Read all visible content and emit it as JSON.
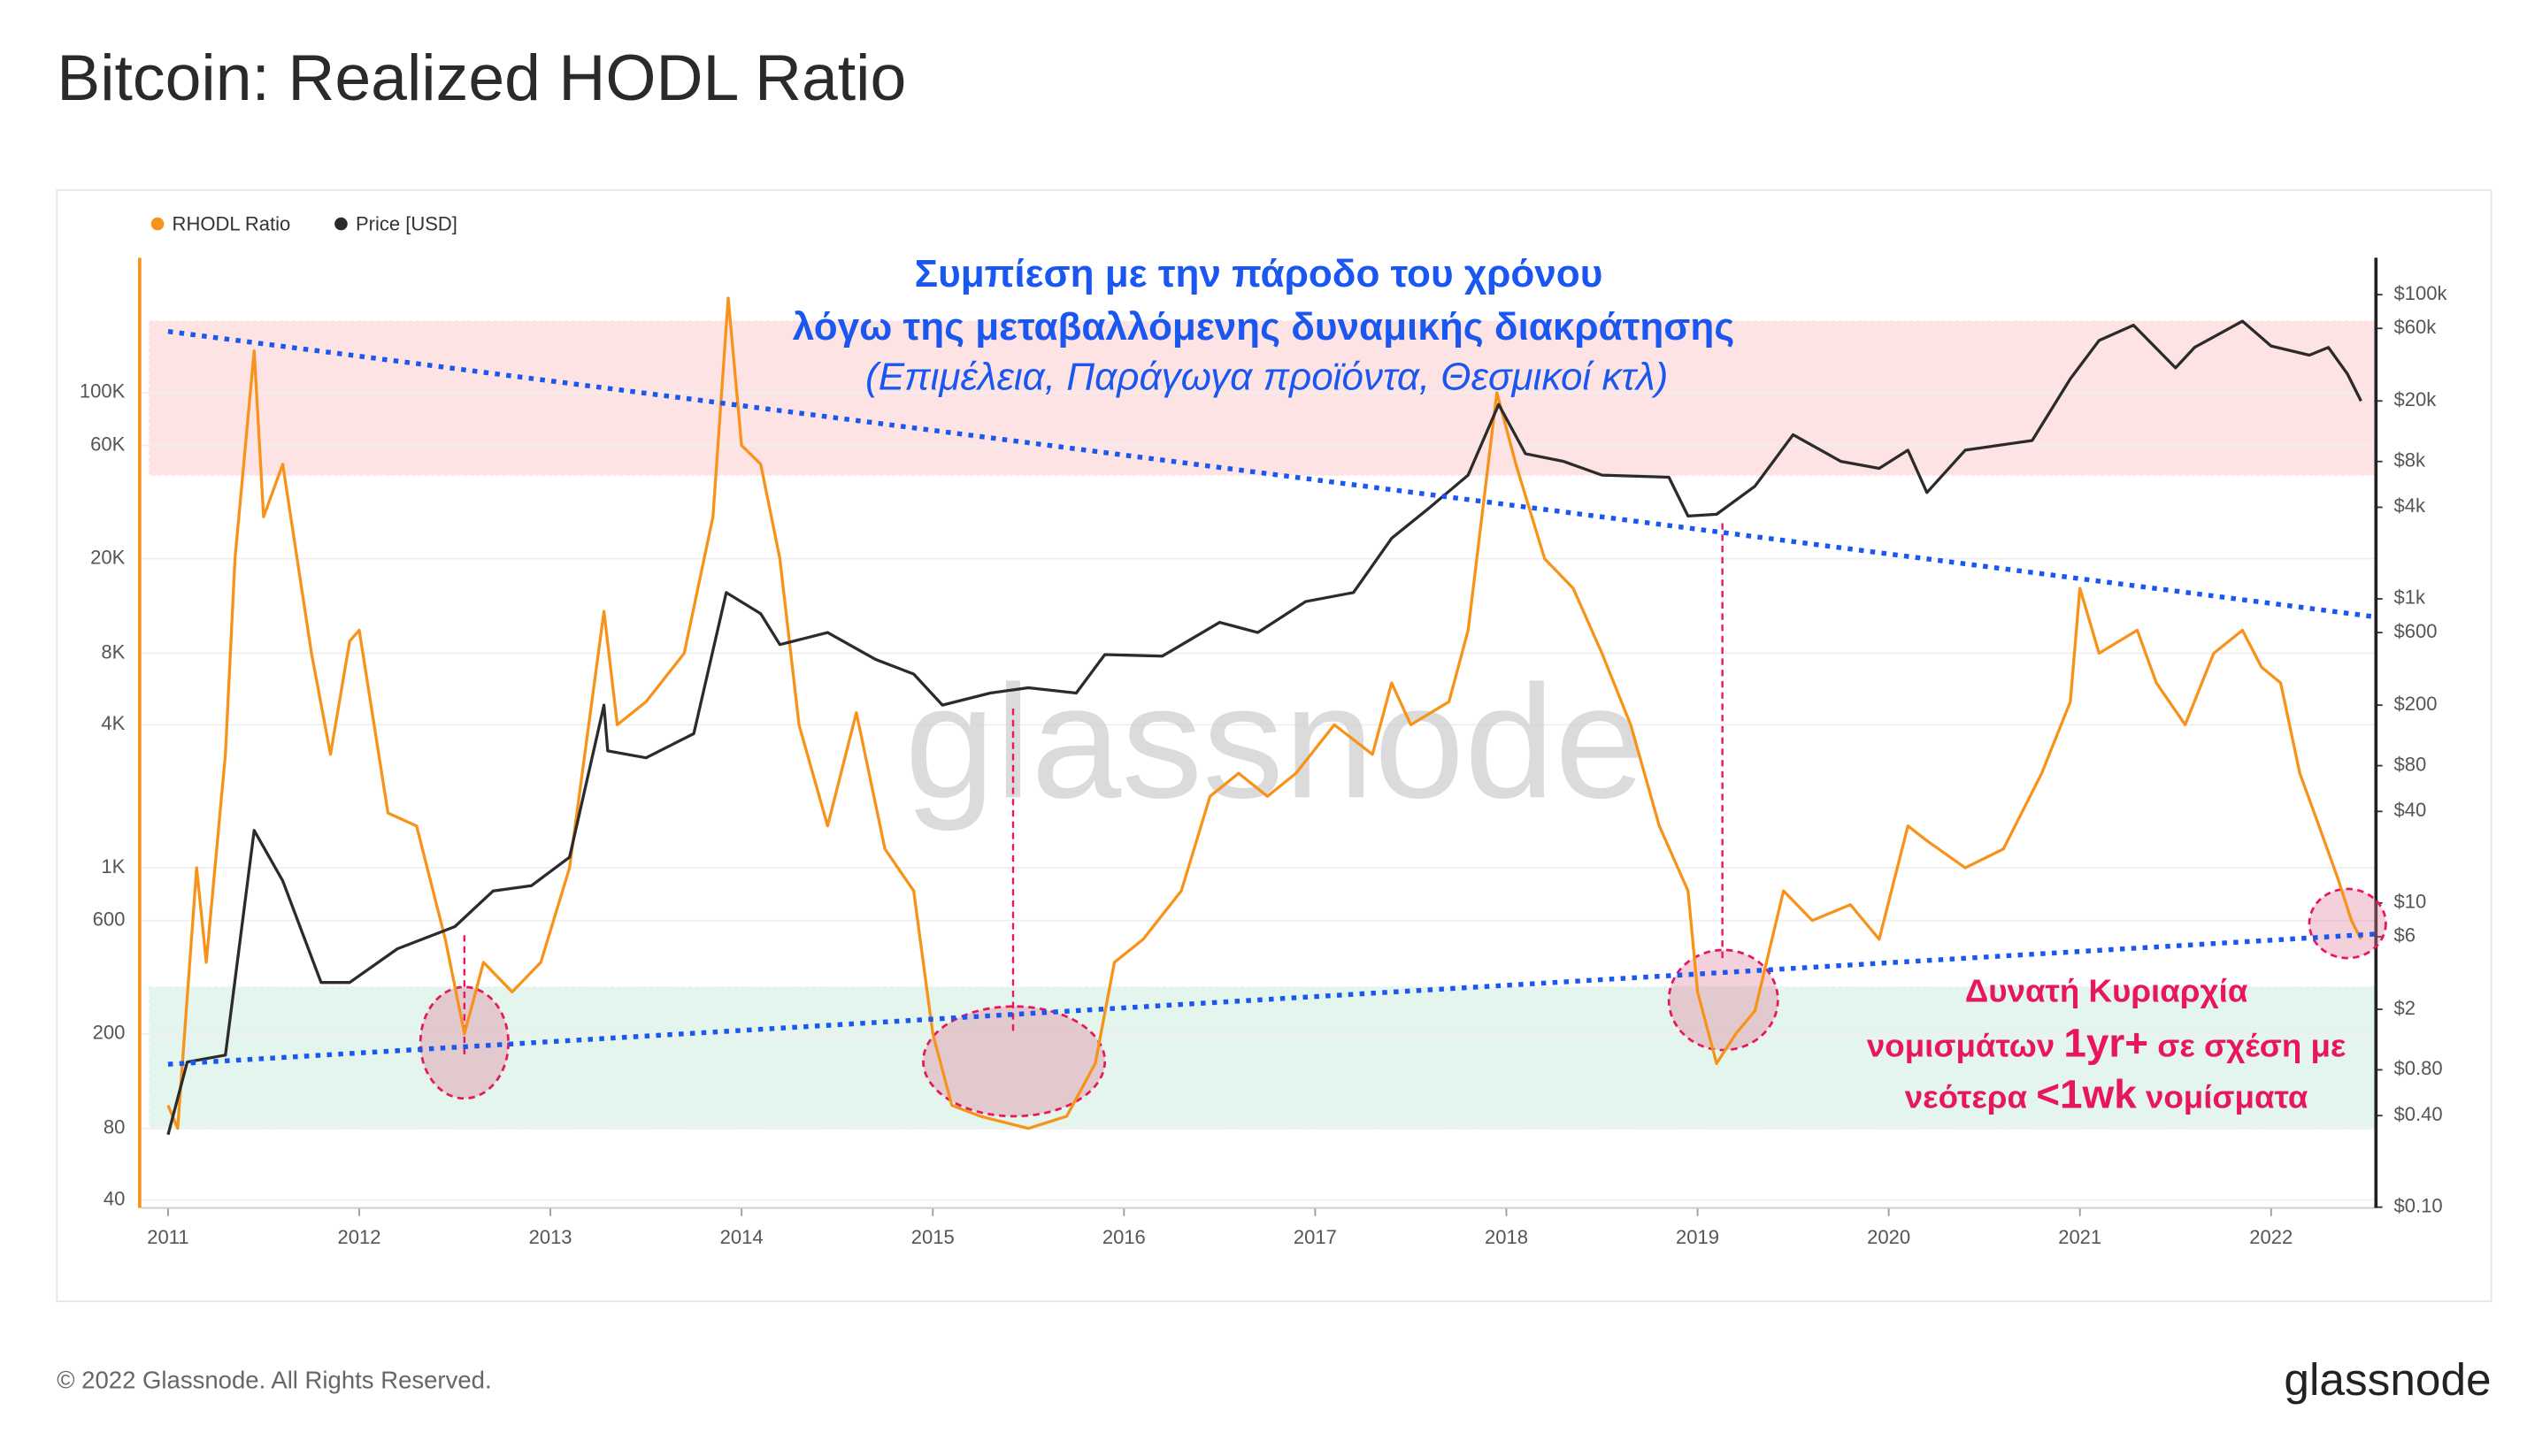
{
  "chart_data": {
    "type": "line",
    "title": "Bitcoin: Realized HODL Ratio",
    "log_scale": true,
    "xlim": [
      2010.86,
      2022.54
    ],
    "xticks": [
      2011,
      2012,
      2013,
      2014,
      2015,
      2016,
      2017,
      2018,
      2019,
      2020,
      2021,
      2022
    ],
    "ylim": [
      37,
      370000
    ],
    "yticks": [
      40,
      80,
      200,
      600,
      {
        "value": 1000,
        "label": "1K"
      },
      {
        "value": 4000,
        "label": "4K"
      },
      {
        "value": 8000,
        "label": "8K"
      },
      {
        "value": 20000,
        "label": "20K"
      },
      {
        "value": 60000,
        "label": "60K"
      },
      {
        "value": 100000,
        "label": "100K"
      }
    ],
    "y2lim": [
      0.0988,
      175000
    ],
    "y2ticks": [
      {
        "value": 0.1,
        "label": "$0.10"
      },
      {
        "value": 0.4,
        "label": "$0.40"
      },
      {
        "value": 0.8,
        "label": "$0.80"
      },
      {
        "value": 2,
        "label": "$2"
      },
      {
        "value": 6,
        "label": "$6"
      },
      {
        "value": 10,
        "label": "$10"
      },
      {
        "value": 40,
        "label": "$40"
      },
      {
        "value": 80,
        "label": "$80"
      },
      {
        "value": 200,
        "label": "$200"
      },
      {
        "value": 600,
        "label": "$600"
      },
      {
        "value": 1000,
        "label": "$1k"
      },
      {
        "value": 4000,
        "label": "$4k"
      },
      {
        "value": 8000,
        "label": "$8k"
      },
      {
        "value": 20000,
        "label": "$20k"
      },
      {
        "value": 60000,
        "label": "$60k"
      },
      {
        "value": 100000,
        "label": "$100k"
      }
    ],
    "series": [
      {
        "name": "RHODL Ratio",
        "color": "#f7931a",
        "axis": "y",
        "x": [
          2011.0,
          2011.05,
          2011.15,
          2011.2,
          2011.3,
          2011.35,
          2011.45,
          2011.5,
          2011.6,
          2011.75,
          2011.85,
          2011.95,
          2012.0,
          2012.15,
          2012.3,
          2012.45,
          2012.55,
          2012.65,
          2012.8,
          2012.95,
          2013.1,
          2013.28,
          2013.35,
          2013.5,
          2013.7,
          2013.85,
          2013.93,
          2014.0,
          2014.1,
          2014.2,
          2014.3,
          2014.45,
          2014.6,
          2014.75,
          2014.9,
          2015.0,
          2015.1,
          2015.25,
          2015.5,
          2015.7,
          2015.85,
          2015.95,
          2016.1,
          2016.3,
          2016.45,
          2016.6,
          2016.75,
          2016.9,
          2017.1,
          2017.3,
          2017.4,
          2017.5,
          2017.7,
          2017.8,
          2017.95,
          2018.05,
          2018.2,
          2018.35,
          2018.5,
          2018.65,
          2018.8,
          2018.95,
          2019.0,
          2019.1,
          2019.2,
          2019.3,
          2019.45,
          2019.6,
          2019.8,
          2019.95,
          2020.1,
          2020.2,
          2020.4,
          2020.6,
          2020.8,
          2020.95,
          2021.0,
          2021.1,
          2021.3,
          2021.4,
          2021.55,
          2021.7,
          2021.85,
          2021.95,
          2022.05,
          2022.15,
          2022.25,
          2022.35,
          2022.42,
          2022.47
        ],
        "values": [
          100,
          80,
          1000,
          400,
          3000,
          20000,
          150000,
          30000,
          50000,
          8000,
          3000,
          9000,
          10000,
          1700,
          1500,
          500,
          200,
          400,
          300,
          400,
          1000,
          12000,
          4000,
          5000,
          8000,
          30000,
          250000,
          60000,
          50000,
          20000,
          4000,
          1500,
          4500,
          1200,
          800,
          200,
          100,
          90,
          80,
          90,
          150,
          400,
          500,
          800,
          2000,
          2500,
          2000,
          2500,
          4000,
          3000,
          6000,
          4000,
          5000,
          10000,
          100000,
          50000,
          20000,
          15000,
          8000,
          4000,
          1500,
          800,
          300,
          150,
          200,
          250,
          800,
          600,
          700,
          500,
          1500,
          1300,
          1000,
          1200,
          2500,
          5000,
          15000,
          8000,
          10000,
          6000,
          4000,
          8000,
          10000,
          7000,
          6000,
          2500,
          1500,
          900,
          600,
          500
        ]
      },
      {
        "name": "Price [USD]",
        "color": "#2b2b2b",
        "axis": "y2",
        "x": [
          2011.0,
          2011.1,
          2011.3,
          2011.45,
          2011.6,
          2011.8,
          2011.95,
          2012.2,
          2012.5,
          2012.7,
          2012.9,
          2013.1,
          2013.28,
          2013.3,
          2013.5,
          2013.75,
          2013.92,
          2014.1,
          2014.2,
          2014.45,
          2014.7,
          2014.9,
          2015.05,
          2015.3,
          2015.5,
          2015.75,
          2015.9,
          2016.2,
          2016.5,
          2016.7,
          2016.95,
          2017.2,
          2017.4,
          2017.6,
          2017.8,
          2017.96,
          2018.1,
          2018.3,
          2018.5,
          2018.85,
          2018.95,
          2019.1,
          2019.3,
          2019.5,
          2019.75,
          2019.95,
          2020.1,
          2020.2,
          2020.4,
          2020.75,
          2020.95,
          2021.1,
          2021.28,
          2021.5,
          2021.6,
          2021.85,
          2022.0,
          2022.2,
          2022.3,
          2022.4,
          2022.47
        ],
        "values": [
          0.3,
          0.9,
          1,
          30,
          14,
          3,
          3,
          5,
          7,
          12,
          13,
          20,
          200,
          100,
          90,
          130,
          1100,
          800,
          500,
          600,
          400,
          320,
          200,
          240,
          260,
          240,
          430,
          420,
          700,
          600,
          960,
          1100,
          2500,
          4000,
          6500,
          19000,
          9000,
          8000,
          6500,
          6300,
          3500,
          3600,
          5500,
          12000,
          8000,
          7200,
          9500,
          5000,
          9500,
          11000,
          28000,
          50000,
          63000,
          33000,
          45000,
          67000,
          46000,
          40000,
          45000,
          30000,
          20000
        ]
      }
    ],
    "zones": [
      {
        "from": 45000,
        "to": 200000,
        "color": "#fde3e3"
      },
      {
        "from": 81,
        "to": 315,
        "color": "#e3f5ec"
      }
    ],
    "trend_lines": [
      {
        "x": [
          2011.0,
          2022.54
        ],
        "values": [
          181000,
          11400
        ],
        "color": "#1a56f0"
      },
      {
        "x": [
          2011.0,
          2022.54
        ],
        "values": [
          149,
          526
        ],
        "color": "#1a56f0"
      }
    ],
    "highlights": [
      {
        "x": [
          2012.32,
          2012.78
        ],
        "values": [
          107,
          315
        ]
      },
      {
        "x": [
          2014.95,
          2015.9
        ],
        "values": [
          90,
          261
        ]
      },
      {
        "x": [
          2018.85,
          2019.42
        ],
        "values": [
          171,
          451
        ]
      },
      {
        "x": [
          2022.2,
          2022.6
        ],
        "values": [
          417,
          815
        ]
      }
    ],
    "guides": [
      {
        "x": 2012.55,
        "values": [
          164,
          526
        ]
      },
      {
        "x": 2015.42,
        "values": [
          206,
          4690
        ]
      },
      {
        "x": 2019.13,
        "values": [
          417,
          28300
        ]
      }
    ],
    "annotations": {
      "top": [
        "Συμπίεση με την πάροδο του χρόνου",
        "λόγω της μεταβαλλόμενης δυναμικής διακράτησης",
        "(Επιμέλεια, Παράγωγα προϊόντα, Θεσμικοί κτλ)"
      ],
      "highlight": [
        [
          {
            "text": "Δυνατή Κυριαρχία",
            "bold": false
          }
        ],
        [
          {
            "text": "νομισμάτων ",
            "bold": false
          },
          {
            "text": "1yr+",
            "bold": true
          },
          {
            "text": " σε σχέση με",
            "bold": false
          }
        ],
        [
          {
            "text": "νεότερα ",
            "bold": false
          },
          {
            "text": "<1wk",
            "bold": true
          },
          {
            "text": " νομίσματα",
            "bold": false
          }
        ]
      ]
    },
    "watermark": "glassnode"
  },
  "footer": {
    "copyright": "© 2022 Glassnode. All Rights Reserved.",
    "logo": "glassnode"
  }
}
